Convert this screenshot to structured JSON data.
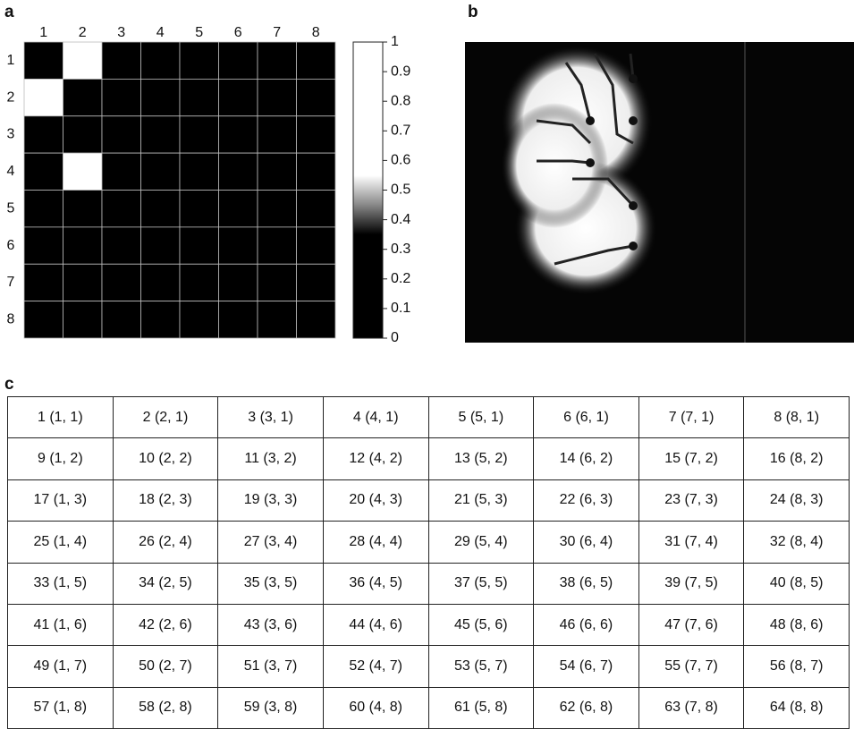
{
  "panel_labels": [
    "a",
    "b",
    "c"
  ],
  "chart_data": {
    "type": "heatmap",
    "x": [
      1,
      2,
      3,
      4,
      5,
      6,
      7,
      8
    ],
    "y": [
      1,
      2,
      3,
      4,
      5,
      6,
      7,
      8
    ],
    "values": [
      [
        0,
        1,
        0,
        0,
        0,
        0,
        0,
        0
      ],
      [
        1,
        0,
        0,
        0,
        0,
        0,
        0,
        0
      ],
      [
        0,
        0,
        0,
        0,
        0,
        0,
        0,
        0
      ],
      [
        0,
        1,
        0,
        0,
        0,
        0,
        0,
        0
      ],
      [
        0,
        0,
        0,
        0,
        0,
        0,
        0,
        0
      ],
      [
        0,
        0,
        0,
        0,
        0,
        0,
        0,
        0
      ],
      [
        0,
        0,
        0,
        0,
        0,
        0,
        0,
        0
      ],
      [
        0,
        0,
        0,
        0,
        0,
        0,
        0,
        0
      ]
    ],
    "zlim": [
      0,
      1
    ],
    "zticks": [
      0,
      0.1,
      0.2,
      0.3,
      0.4,
      0.5,
      0.6,
      0.7,
      0.8,
      0.9,
      1
    ]
  },
  "table": {
    "rows": [
      [
        "1 (1, 1)",
        "2 (2, 1)",
        "3 (3, 1)",
        "4 (4, 1)",
        "5 (5, 1)",
        "6 (6, 1)",
        "7 (7, 1)",
        "8 (8, 1)"
      ],
      [
        "9 (1, 2)",
        "10 (2, 2)",
        "11 (3, 2)",
        "12 (4, 2)",
        "13 (5, 2)",
        "14 (6, 2)",
        "15 (7, 2)",
        "16 (8, 2)"
      ],
      [
        "17 (1, 3)",
        "18 (2, 3)",
        "19 (3, 3)",
        "20 (4, 3)",
        "21 (5, 3)",
        "22 (6, 3)",
        "23 (7, 3)",
        "24 (8, 3)"
      ],
      [
        "25 (1, 4)",
        "26 (2, 4)",
        "27 (3, 4)",
        "28 (4, 4)",
        "29 (5, 4)",
        "30 (6, 4)",
        "31 (7, 4)",
        "32 (8, 4)"
      ],
      [
        "33 (1, 5)",
        "34 (2, 5)",
        "35 (3, 5)",
        "36 (4, 5)",
        "37 (5, 5)",
        "38 (6, 5)",
        "39 (7, 5)",
        "40 (8, 5)"
      ],
      [
        "41 (1, 6)",
        "42 (2, 6)",
        "43 (3, 6)",
        "44 (4, 6)",
        "45 (5, 6)",
        "46 (6, 6)",
        "47 (7, 6)",
        "48 (8, 6)"
      ],
      [
        "49 (1, 7)",
        "50 (2, 7)",
        "51 (3, 7)",
        "52 (4, 7)",
        "53 (5, 7)",
        "54 (6, 7)",
        "55 (7, 7)",
        "56 (8, 7)"
      ],
      [
        "57 (1, 8)",
        "58 (2, 8)",
        "59 (3, 8)",
        "60 (4, 8)",
        "61 (5, 8)",
        "62 (6, 8)",
        "63 (7, 8)",
        "64 (8, 8)"
      ]
    ]
  }
}
